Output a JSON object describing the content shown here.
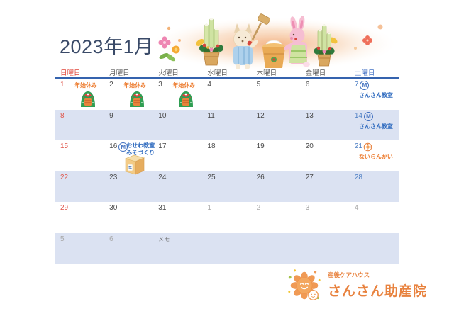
{
  "title": "2023年1月",
  "weekdays": [
    {
      "label": "日曜日",
      "type": "sunday"
    },
    {
      "label": "月曜日",
      "type": "weekday"
    },
    {
      "label": "火曜日",
      "type": "weekday"
    },
    {
      "label": "水曜日",
      "type": "weekday"
    },
    {
      "label": "木曜日",
      "type": "weekday"
    },
    {
      "label": "金曜日",
      "type": "weekday"
    },
    {
      "label": "土曜日",
      "type": "saturday"
    }
  ],
  "rows": [
    {
      "alt": false,
      "cells": [
        {
          "day": "1",
          "type": "sunday",
          "event": {
            "label": "年始休み",
            "pos": "inline",
            "color": "orange"
          },
          "icon": "wreath"
        },
        {
          "day": "2",
          "type": "weekday",
          "event": {
            "label": "年始休み",
            "pos": "inline",
            "color": "orange"
          },
          "icon": "wreath"
        },
        {
          "day": "3",
          "type": "weekday",
          "event": {
            "label": "年始休み",
            "pos": "inline",
            "color": "orange"
          },
          "icon": "wreath"
        },
        {
          "day": "4",
          "type": "weekday"
        },
        {
          "day": "5",
          "type": "weekday"
        },
        {
          "day": "6",
          "type": "weekday"
        },
        {
          "day": "7",
          "type": "saturday",
          "badge": "M",
          "event": {
            "label": "さんさん教室",
            "pos": "below",
            "color": "blue"
          }
        }
      ]
    },
    {
      "alt": true,
      "cells": [
        {
          "day": "8",
          "type": "sunday"
        },
        {
          "day": "9",
          "type": "weekday"
        },
        {
          "day": "10",
          "type": "weekday"
        },
        {
          "day": "11",
          "type": "weekday"
        },
        {
          "day": "12",
          "type": "weekday"
        },
        {
          "day": "13",
          "type": "weekday"
        },
        {
          "day": "14",
          "type": "saturday",
          "badge": "M",
          "event": {
            "label": "さんさん教室",
            "pos": "below",
            "color": "blue"
          }
        }
      ]
    },
    {
      "alt": false,
      "cells": [
        {
          "day": "15",
          "type": "sunday"
        },
        {
          "day": "16",
          "type": "weekday",
          "badge": "M",
          "event": {
            "label": "おせわ教室",
            "label2": "みそづくり",
            "pos": "right",
            "color": "blue"
          },
          "icon": "miso"
        },
        {
          "day": "17",
          "type": "weekday"
        },
        {
          "day": "18",
          "type": "weekday"
        },
        {
          "day": "19",
          "type": "weekday"
        },
        {
          "day": "20",
          "type": "weekday"
        },
        {
          "day": "21",
          "type": "saturday",
          "badge": "sun",
          "event": {
            "label": "ないらんかい",
            "pos": "below",
            "color": "orange"
          }
        }
      ]
    },
    {
      "alt": true,
      "cells": [
        {
          "day": "22",
          "type": "sunday"
        },
        {
          "day": "23",
          "type": "weekday"
        },
        {
          "day": "24",
          "type": "weekday"
        },
        {
          "day": "25",
          "type": "weekday"
        },
        {
          "day": "26",
          "type": "weekday"
        },
        {
          "day": "27",
          "type": "weekday"
        },
        {
          "day": "28",
          "type": "saturday"
        }
      ]
    },
    {
      "alt": false,
      "cells": [
        {
          "day": "29",
          "type": "sunday"
        },
        {
          "day": "30",
          "type": "weekday"
        },
        {
          "day": "31",
          "type": "weekday"
        },
        {
          "day": "1",
          "type": "muted"
        },
        {
          "day": "2",
          "type": "muted"
        },
        {
          "day": "3",
          "type": "muted"
        },
        {
          "day": "4",
          "type": "muted"
        }
      ]
    },
    {
      "alt": true,
      "cells": [
        {
          "day": "5",
          "type": "muted"
        },
        {
          "day": "6",
          "type": "muted"
        },
        {
          "memo": "メモ"
        },
        {},
        {},
        {},
        {}
      ]
    }
  ],
  "logo": {
    "subtitle": "産後ケアハウス",
    "name": "さんさん助産院"
  },
  "colors": {
    "title": "#3a4a68",
    "sunday_red": "#e1564a",
    "saturday_blue": "#4d7fc4",
    "weekday_gray": "#4a4a4a",
    "next_month_gray": "#a8a8a8",
    "event_orange": "#ed7d31",
    "event_blue": "#2f6bbf",
    "row_alt_lavender": "#dbe2f2",
    "header_line_blue": "#3563ae",
    "logo_orange": "#e8823e"
  }
}
